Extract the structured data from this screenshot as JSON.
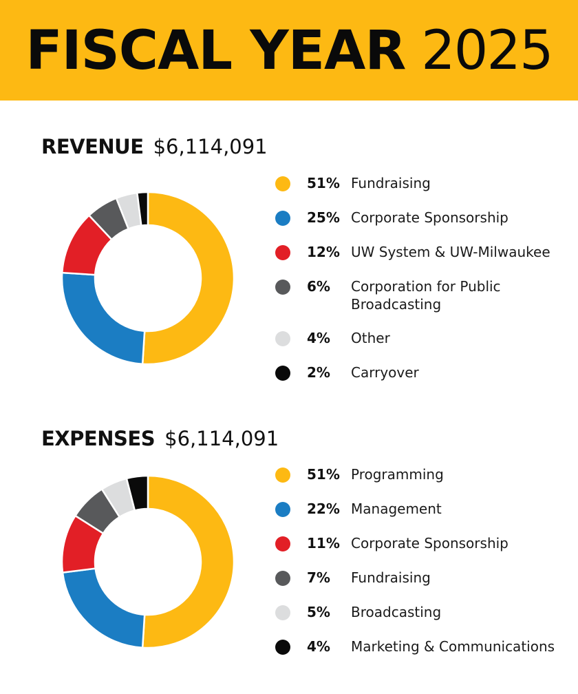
{
  "banner": {
    "title_bold": "FISCAL YEAR",
    "title_light": "2025",
    "color": "#FDB913"
  },
  "chart_data": [
    {
      "type": "pie",
      "style": "donut",
      "title": "REVENUE",
      "total_label": "$6,114,091",
      "categories": [
        "Fundraising",
        "Corporate Sponsorship",
        "UW System & UW-Milwaukee",
        "Corporation for Public Broadcasting",
        "Other",
        "Carryover"
      ],
      "values": [
        51,
        25,
        12,
        6,
        4,
        2
      ],
      "value_labels": [
        "51%",
        "25%",
        "12%",
        "6%",
        "4%",
        "2%"
      ],
      "colors": [
        "#FDB913",
        "#1B7DC3",
        "#E21F26",
        "#58595B",
        "#DCDDDE",
        "#0A0A0A"
      ],
      "legend": "right"
    },
    {
      "type": "pie",
      "style": "donut",
      "title": "EXPENSES",
      "total_label": "$6,114,091",
      "categories": [
        "Programming",
        "Management",
        "Corporate Sponsorship",
        "Fundraising",
        "Broadcasting",
        "Marketing & Communications"
      ],
      "values": [
        51,
        22,
        11,
        7,
        5,
        4
      ],
      "value_labels": [
        "51%",
        "22%",
        "11%",
        "7%",
        "5%",
        "4%"
      ],
      "colors": [
        "#FDB913",
        "#1B7DC3",
        "#E21F26",
        "#58595B",
        "#DCDDDE",
        "#0A0A0A"
      ],
      "legend": "right"
    }
  ]
}
